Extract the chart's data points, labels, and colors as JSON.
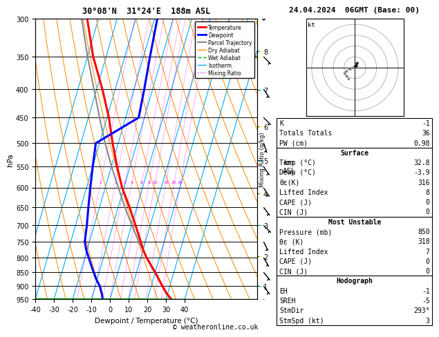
{
  "title_left": "30°08'N  31°24'E  188m ASL",
  "title_right": "24.04.2024  06GMT (Base: 00)",
  "xlabel": "Dewpoint / Temperature (°C)",
  "pressure_levels": [
    300,
    350,
    400,
    450,
    500,
    550,
    600,
    650,
    700,
    750,
    800,
    850,
    900,
    950
  ],
  "temp_range": [
    -40,
    35
  ],
  "pressure_min": 300,
  "pressure_max": 950,
  "temp_color": "#ff0000",
  "dewp_color": "#0000ff",
  "parcel_color": "#888888",
  "dry_adiabat_color": "#ff8800",
  "wet_adiabat_color": "#00bb00",
  "isotherm_color": "#00aaff",
  "mixing_ratio_color": "#ff00ff",
  "background_color": "#ffffff",
  "temp_data": {
    "pressure": [
      950,
      925,
      900,
      875,
      850,
      825,
      800,
      775,
      750,
      700,
      650,
      600,
      550,
      500,
      450,
      400,
      350,
      300
    ],
    "temp": [
      32.8,
      29.0,
      26.0,
      23.0,
      20.0,
      16.5,
      13.0,
      10.0,
      7.5,
      2.0,
      -4.0,
      -11.0,
      -17.0,
      -23.0,
      -29.0,
      -37.0,
      -47.0,
      -56.0
    ]
  },
  "dewp_data": {
    "pressure": [
      950,
      925,
      900,
      875,
      850,
      825,
      800,
      775,
      750,
      700,
      650,
      600,
      550,
      500,
      450,
      400,
      350,
      300
    ],
    "dewp": [
      -3.9,
      -5.5,
      -7.5,
      -10.5,
      -13.0,
      -15.5,
      -18.0,
      -20.5,
      -22.5,
      -24.0,
      -26.0,
      -28.0,
      -30.0,
      -32.0,
      -13.0,
      -14.5,
      -16.5,
      -18.5
    ]
  },
  "parcel_data": {
    "pressure": [
      950,
      900,
      850,
      800,
      750,
      700,
      650,
      600,
      550,
      500,
      450,
      400,
      350,
      300
    ],
    "temp": [
      32.8,
      26.0,
      19.5,
      13.0,
      6.5,
      0.0,
      -6.5,
      -13.0,
      -20.0,
      -27.0,
      -34.0,
      -41.5,
      -50.0,
      -59.0
    ]
  },
  "stats": {
    "K": -1,
    "Totals_Totals": 36,
    "PW_cm": 0.98,
    "Surface_Temp": 32.8,
    "Surface_Dewp": -3.9,
    "Surface_ThetaE": 316,
    "Surface_LI": 8,
    "Surface_CAPE": 0,
    "Surface_CIN": 0,
    "MU_Pressure": 850,
    "MU_ThetaE": 318,
    "MU_LI": 7,
    "MU_CAPE": 0,
    "MU_CIN": 0,
    "EH": -1,
    "SREH": -5,
    "StmDir": 293,
    "StmSpd": 3
  },
  "km_ticks": {
    "km": [
      1,
      2,
      3,
      4,
      5,
      6,
      7,
      8
    ],
    "pressure": [
      899,
      795,
      700,
      615,
      537,
      466,
      401,
      342
    ]
  },
  "mixing_ratio_lines": [
    1,
    2,
    3,
    4,
    6,
    8,
    10,
    15,
    20,
    25
  ],
  "footer": "© weatheronline.co.uk",
  "skew_factor": 38.0,
  "wind_barbs_right": {
    "pressure": [
      950,
      900,
      850,
      800,
      750,
      700,
      650,
      600,
      550,
      500,
      450,
      400,
      350,
      300
    ],
    "u": [
      -2,
      -3,
      -4,
      -3,
      -2,
      -3,
      -3,
      -2,
      -2,
      -1,
      -2,
      -2,
      -2,
      -1
    ],
    "v": [
      3,
      4,
      5,
      5,
      4,
      3,
      4,
      3,
      3,
      3,
      2,
      3,
      2,
      2
    ]
  }
}
